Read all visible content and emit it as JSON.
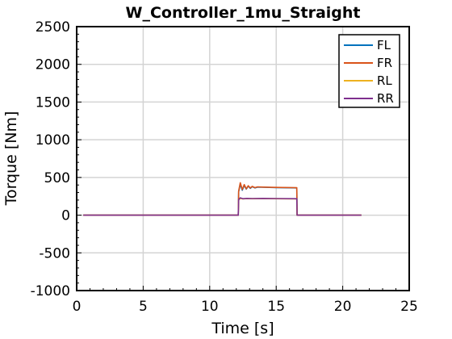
{
  "chart_data": {
    "type": "line",
    "title": "W_Controller_1mu_Straight",
    "xlabel": "Time [s]",
    "ylabel": "Torque [Nm]",
    "xlim": [
      0,
      25
    ],
    "ylim": [
      -1000,
      2500
    ],
    "xticks": [
      0,
      5,
      10,
      15,
      20,
      25
    ],
    "yticks": [
      -1000,
      -500,
      0,
      500,
      1000,
      1500,
      2000,
      2500
    ],
    "grid": true,
    "legend_position": "top-right",
    "series": [
      {
        "name": "FL",
        "color": "#0072BD",
        "x": [
          0.5,
          12.15,
          12.18,
          12.3,
          12.45,
          12.6,
          12.75,
          12.9,
          13.05,
          13.2,
          13.4,
          13.6,
          14,
          15,
          16.55,
          16.57,
          21.4
        ],
        "y": [
          0,
          0,
          310,
          410,
          330,
          395,
          345,
          385,
          355,
          378,
          362,
          372,
          370,
          366,
          362,
          0,
          0
        ]
      },
      {
        "name": "FR",
        "color": "#D95319",
        "x": [
          0.5,
          12.15,
          12.18,
          12.3,
          12.45,
          12.6,
          12.75,
          12.9,
          13.05,
          13.2,
          13.4,
          13.6,
          14,
          15,
          16.55,
          16.57,
          21.4
        ],
        "y": [
          0,
          0,
          320,
          430,
          340,
          405,
          350,
          390,
          360,
          382,
          365,
          375,
          372,
          368,
          364,
          0,
          0
        ]
      },
      {
        "name": "RL",
        "color": "#EDB120",
        "x": [
          0.5,
          12.15,
          12.18,
          12.3,
          12.5,
          12.8,
          13.2,
          14,
          15,
          16.55,
          16.57,
          21.4
        ],
        "y": [
          0,
          0,
          200,
          225,
          215,
          220,
          218,
          220,
          218,
          216,
          0,
          0
        ]
      },
      {
        "name": "RR",
        "color": "#7E2F8E",
        "x": [
          0.5,
          12.15,
          12.18,
          12.3,
          12.5,
          12.8,
          13.2,
          14,
          15,
          16.55,
          16.57,
          21.4
        ],
        "y": [
          0,
          0,
          205,
          230,
          218,
          222,
          220,
          222,
          220,
          218,
          0,
          0
        ]
      }
    ]
  }
}
